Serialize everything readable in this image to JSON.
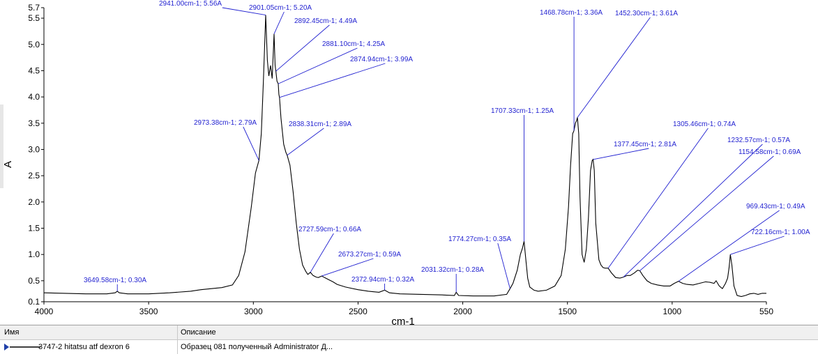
{
  "chart_data": {
    "type": "line",
    "xlabel": "cm-1",
    "ylabel": "A",
    "xlim": [
      4000,
      550
    ],
    "ylim": [
      0.1,
      5.7
    ],
    "x_reversed": true,
    "x_ticks": [
      4000,
      3500,
      3000,
      2500,
      2000,
      1500,
      1000,
      550
    ],
    "y_ticks": [
      0.1,
      0.5,
      1.0,
      1.5,
      2.0,
      2.5,
      3.0,
      3.5,
      4.0,
      4.5,
      5.0,
      5.5,
      5.7
    ],
    "y_tick_labels": [
      "0.1",
      "0.5",
      "1.0",
      "1.5",
      "2.0",
      "2.5",
      "3.0",
      "3.5",
      "4.0",
      "4.5",
      "5.0",
      "5.5",
      "5.7"
    ],
    "grid": false,
    "line_color": "#000000",
    "annotation_color": "#1f1fd0",
    "series": [
      {
        "x": [
          4000,
          3900,
          3800,
          3700,
          3660,
          3649.58,
          3640,
          3600,
          3500,
          3400,
          3300,
          3250,
          3200,
          3150,
          3100,
          3070,
          3040,
          3010,
          2990,
          2973.38,
          2962,
          2952,
          2941,
          2933,
          2926,
          2918,
          2910,
          2901.05,
          2896,
          2892.45,
          2887,
          2881.1,
          2878,
          2874.94,
          2868,
          2855,
          2845,
          2838.31,
          2825,
          2810,
          2795,
          2780,
          2765,
          2750,
          2740,
          2727.59,
          2715,
          2700,
          2690,
          2673.27,
          2660,
          2640,
          2620,
          2600,
          2560,
          2500,
          2450,
          2400,
          2372.94,
          2350,
          2300,
          2200,
          2100,
          2040,
          2031.32,
          2020,
          1950,
          1850,
          1790,
          1774.27,
          1760,
          1740,
          1725,
          1715,
          1707.33,
          1700,
          1690,
          1680,
          1660,
          1640,
          1600,
          1560,
          1530,
          1510,
          1495,
          1485,
          1475,
          1468.78,
          1462,
          1456,
          1452.3,
          1446,
          1440,
          1430,
          1420,
          1410,
          1400,
          1390,
          1382,
          1377.45,
          1372,
          1365,
          1350,
          1340,
          1330,
          1320,
          1305.46,
          1290,
          1270,
          1250,
          1232.57,
          1215,
          1200,
          1180,
          1165,
          1154.58,
          1140,
          1120,
          1100,
          1070,
          1040,
          1010,
          990,
          969.43,
          950,
          930,
          900,
          870,
          840,
          820,
          800,
          790,
          775,
          760,
          745,
          735,
          728,
          722.16,
          715,
          705,
          690,
          670,
          650,
          630,
          610,
          590,
          570,
          550
        ],
        "y": [
          0.27,
          0.26,
          0.25,
          0.25,
          0.27,
          0.3,
          0.27,
          0.25,
          0.25,
          0.27,
          0.3,
          0.33,
          0.35,
          0.37,
          0.42,
          0.6,
          1.05,
          1.9,
          2.55,
          2.79,
          3.3,
          4.3,
          5.56,
          4.7,
          4.4,
          4.6,
          4.35,
          5.2,
          4.6,
          4.49,
          4.3,
          4.25,
          4.05,
          3.99,
          3.6,
          3.1,
          2.95,
          2.89,
          2.7,
          2.2,
          1.6,
          1.1,
          0.8,
          0.68,
          0.62,
          0.66,
          0.6,
          0.57,
          0.56,
          0.59,
          0.56,
          0.52,
          0.48,
          0.43,
          0.38,
          0.33,
          0.3,
          0.28,
          0.32,
          0.27,
          0.25,
          0.24,
          0.23,
          0.22,
          0.28,
          0.22,
          0.21,
          0.21,
          0.24,
          0.35,
          0.45,
          0.7,
          1.0,
          1.12,
          1.25,
          0.95,
          0.55,
          0.38,
          0.32,
          0.3,
          0.32,
          0.4,
          0.6,
          1.1,
          1.9,
          2.7,
          3.3,
          3.36,
          3.5,
          3.55,
          3.61,
          3.3,
          2.1,
          1.0,
          0.85,
          1.1,
          1.7,
          2.6,
          2.79,
          2.81,
          2.6,
          1.6,
          0.9,
          0.8,
          0.75,
          0.74,
          0.74,
          0.65,
          0.56,
          0.55,
          0.57,
          0.6,
          0.6,
          0.65,
          0.7,
          0.69,
          0.6,
          0.5,
          0.45,
          0.42,
          0.4,
          0.4,
          0.45,
          0.49,
          0.45,
          0.43,
          0.42,
          0.45,
          0.48,
          0.47,
          0.45,
          0.5,
          0.4,
          0.35,
          0.45,
          0.55,
          0.75,
          1.0,
          0.8,
          0.4,
          0.22,
          0.2,
          0.22,
          0.25,
          0.26,
          0.24,
          0.26,
          0.26
        ]
      }
    ],
    "annotations": [
      {
        "x": 2941.0,
        "y": 5.56,
        "text": "2941.00cm-1; 5.56A",
        "label_anchor": "above-left"
      },
      {
        "x": 2901.05,
        "y": 5.2,
        "text": "2901.05cm-1; 5.20A",
        "label_anchor": "above"
      },
      {
        "x": 2892.45,
        "y": 4.49,
        "text": "2892.45cm-1; 4.49A",
        "label_anchor": "upper-right"
      },
      {
        "x": 2881.1,
        "y": 4.25,
        "text": "2881.10cm-1; 4.25A",
        "label_anchor": "upper-right"
      },
      {
        "x": 2874.94,
        "y": 3.99,
        "text": "2874.94cm-1; 3.99A",
        "label_anchor": "upper-right"
      },
      {
        "x": 2973.38,
        "y": 2.79,
        "text": "2973.38cm-1; 2.79A",
        "label_anchor": "upper-left"
      },
      {
        "x": 2838.31,
        "y": 2.89,
        "text": "2838.31cm-1; 2.89A",
        "label_anchor": "upper-right"
      },
      {
        "x": 2727.59,
        "y": 0.66,
        "text": "2727.59cm-1; 0.66A",
        "label_anchor": "upper-right"
      },
      {
        "x": 2673.27,
        "y": 0.59,
        "text": "2673.27cm-1; 0.59A",
        "label_anchor": "upper-right"
      },
      {
        "x": 2372.94,
        "y": 0.32,
        "text": "2372.94cm-1; 0.32A",
        "label_anchor": "above"
      },
      {
        "x": 2031.32,
        "y": 0.28,
        "text": "2031.32cm-1; 0.28A",
        "label_anchor": "above"
      },
      {
        "x": 3649.58,
        "y": 0.3,
        "text": "3649.58cm-1; 0.30A",
        "label_anchor": "above"
      },
      {
        "x": 1774.27,
        "y": 0.35,
        "text": "1774.27cm-1; 0.35A",
        "label_anchor": "upper-left"
      },
      {
        "x": 1707.33,
        "y": 1.25,
        "text": "1707.33cm-1; 1.25A",
        "label_anchor": "above"
      },
      {
        "x": 1468.78,
        "y": 3.36,
        "text": "1468.78cm-1; 3.36A",
        "label_anchor": "above"
      },
      {
        "x": 1452.3,
        "y": 3.61,
        "text": "1452.30cm-1; 3.61A",
        "label_anchor": "upper-right"
      },
      {
        "x": 1377.45,
        "y": 2.81,
        "text": "1377.45cm-1; 2.81A",
        "label_anchor": "upper-right"
      },
      {
        "x": 1305.46,
        "y": 0.74,
        "text": "1305.46cm-1; 0.74A",
        "label_anchor": "upper-right"
      },
      {
        "x": 1232.57,
        "y": 0.57,
        "text": "1232.57cm-1; 0.57A",
        "label_anchor": "upper-right"
      },
      {
        "x": 1154.58,
        "y": 0.69,
        "text": "1154.58cm-1; 0.69A",
        "label_anchor": "upper-right"
      },
      {
        "x": 969.43,
        "y": 0.49,
        "text": "969.43cm-1; 0.49A",
        "label_anchor": "upper-right"
      },
      {
        "x": 722.16,
        "y": 1.0,
        "text": "722.16cm-1; 1.00A",
        "label_anchor": "upper-right"
      }
    ]
  },
  "legend": {
    "col_name": "Имя",
    "col_desc": "Описание",
    "row": {
      "name": "3747-2 hitatsu atf dexron 6",
      "description": "Образец 081 полученный Administrator Д..."
    }
  }
}
